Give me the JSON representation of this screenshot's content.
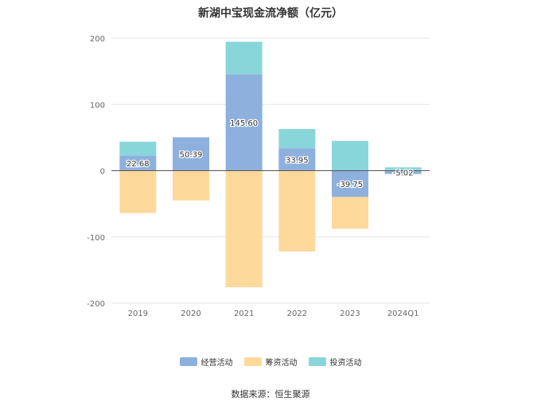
{
  "chart_data": {
    "type": "bar",
    "stacked": true,
    "title": "新湖中宝现金流净额（亿元）",
    "categories": [
      "2019",
      "2020",
      "2021",
      "2022",
      "2023",
      "2024Q1"
    ],
    "series": [
      {
        "name": "经营活动",
        "color": "#8EB0DD",
        "values": [
          22.68,
          50.39,
          145.6,
          33.95,
          -39.75,
          -5.02
        ],
        "labels": [
          "22.68",
          "50.39",
          "145.60",
          "33.95",
          "-39.75",
          "-5.02"
        ]
      },
      {
        "name": "筹资活动",
        "color": "#FDD99B",
        "values": [
          -64,
          -45,
          -176,
          -122,
          -48,
          1
        ]
      },
      {
        "name": "投资活动",
        "color": "#88D6DA",
        "values": [
          21,
          0,
          49,
          29,
          45,
          4
        ]
      }
    ],
    "yticks": [
      "200",
      "100",
      "0",
      "-100",
      "-200"
    ],
    "ylim": [
      -200,
      200
    ],
    "grid": true,
    "legend_position": "bottom"
  },
  "footer": {
    "source": "数据来源：恒生聚源"
  }
}
